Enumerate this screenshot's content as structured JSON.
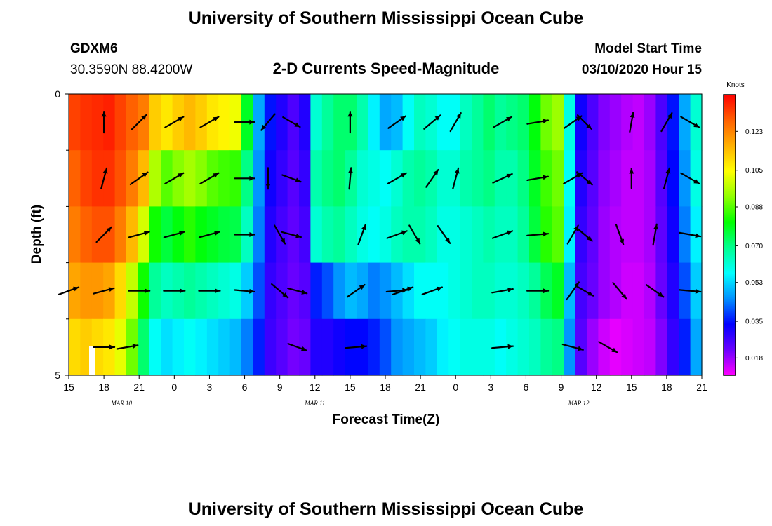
{
  "header": {
    "title_top": "University of Southern Mississippi Ocean Cube",
    "title_bottom": "University of Southern Mississippi Ocean Cube",
    "station_id": "GDXM6",
    "station_coords": "30.3590N 88.4200W",
    "model_start_label": "Model Start Time",
    "model_start_value": "03/10/2020 Hour 15"
  },
  "chart_data": {
    "type": "heatmap",
    "title": "2-D Currents Speed-Magnitude",
    "xlabel": "Forecast Time(Z)",
    "ylabel": "Depth (ft)",
    "units_label": "Knots",
    "x_range_hours": [
      0,
      54
    ],
    "ylim": [
      0,
      5
    ],
    "y_ticks": [
      "0",
      "5"
    ],
    "x_tick_labels": [
      "15",
      "18",
      "21",
      "0",
      "3",
      "6",
      "9",
      "12",
      "15",
      "18",
      "21",
      "0",
      "3",
      "6",
      "9",
      "12",
      "15",
      "18",
      "21"
    ],
    "date_labels": [
      {
        "text": "MAR 10",
        "hour": 4.5
      },
      {
        "text": "MAR 11",
        "hour": 21
      },
      {
        "text": "MAR 12",
        "hour": 43.5
      }
    ],
    "colorbar": {
      "min": 0.01,
      "max": 0.14,
      "tick_values": [
        0.018,
        0.035,
        0.053,
        0.07,
        0.088,
        0.105,
        0.123
      ],
      "tick_labels": [
        "0.018",
        "0.035",
        "0.053",
        "0.070",
        "0.088",
        "0.105",
        "0.123"
      ],
      "colors": [
        "#ff00ff",
        "#6a00ff",
        "#0000ff",
        "#0090ff",
        "#00ffff",
        "#00ff90",
        "#00ff00",
        "#90ff00",
        "#ffff00",
        "#ffb000",
        "#ff6000",
        "#ff0000"
      ]
    },
    "depth_levels": [
      0.5,
      1.5,
      2.5,
      3.5,
      4.5
    ],
    "time_hours": [
      0,
      1,
      2,
      3,
      4,
      5,
      6,
      7,
      8,
      9,
      10,
      11,
      12,
      13,
      14,
      15,
      16,
      17,
      18,
      19,
      20,
      21,
      22,
      23,
      24,
      25,
      26,
      27,
      28,
      29,
      30,
      31,
      32,
      33,
      34,
      35,
      36,
      37,
      38,
      39,
      40,
      41,
      42,
      43,
      44,
      45,
      46,
      47,
      48,
      49,
      50,
      51,
      52,
      53,
      54
    ],
    "speed": [
      [
        0.132,
        0.134,
        0.135,
        0.136,
        0.132,
        0.128,
        0.124,
        0.112,
        0.108,
        0.112,
        0.115,
        0.112,
        0.108,
        0.106,
        0.103,
        0.078,
        0.048,
        0.035,
        0.03,
        0.025,
        0.03,
        0.062,
        0.068,
        0.072,
        0.072,
        0.066,
        0.056,
        0.048,
        0.05,
        0.058,
        0.064,
        0.062,
        0.058,
        0.058,
        0.064,
        0.068,
        0.072,
        0.068,
        0.07,
        0.072,
        0.08,
        0.09,
        0.094,
        0.06,
        0.032,
        0.025,
        0.02,
        0.018,
        0.016,
        0.015,
        0.018,
        0.025,
        0.035,
        0.048,
        0.062
      ],
      [
        0.128,
        0.132,
        0.134,
        0.134,
        0.13,
        0.124,
        0.115,
        0.096,
        0.088,
        0.092,
        0.095,
        0.092,
        0.088,
        0.086,
        0.085,
        0.07,
        0.046,
        0.032,
        0.028,
        0.024,
        0.028,
        0.066,
        0.07,
        0.072,
        0.068,
        0.062,
        0.06,
        0.058,
        0.062,
        0.066,
        0.068,
        0.066,
        0.062,
        0.062,
        0.066,
        0.068,
        0.07,
        0.066,
        0.066,
        0.07,
        0.078,
        0.086,
        0.09,
        0.058,
        0.03,
        0.024,
        0.019,
        0.017,
        0.015,
        0.015,
        0.017,
        0.024,
        0.034,
        0.046,
        0.06
      ],
      [
        0.124,
        0.128,
        0.13,
        0.13,
        0.124,
        0.115,
        0.1,
        0.082,
        0.076,
        0.08,
        0.084,
        0.08,
        0.078,
        0.076,
        0.075,
        0.064,
        0.044,
        0.03,
        0.026,
        0.023,
        0.026,
        0.062,
        0.066,
        0.068,
        0.064,
        0.06,
        0.058,
        0.06,
        0.064,
        0.066,
        0.066,
        0.064,
        0.06,
        0.06,
        0.062,
        0.064,
        0.066,
        0.064,
        0.064,
        0.068,
        0.076,
        0.084,
        0.088,
        0.056,
        0.028,
        0.023,
        0.018,
        0.016,
        0.015,
        0.015,
        0.017,
        0.023,
        0.032,
        0.044,
        0.056
      ],
      [
        0.118,
        0.12,
        0.12,
        0.118,
        0.11,
        0.098,
        0.082,
        0.068,
        0.064,
        0.066,
        0.068,
        0.066,
        0.064,
        0.062,
        0.06,
        0.052,
        0.04,
        0.028,
        0.025,
        0.022,
        0.024,
        0.036,
        0.04,
        0.046,
        0.05,
        0.048,
        0.044,
        0.046,
        0.05,
        0.054,
        0.058,
        0.058,
        0.058,
        0.06,
        0.062,
        0.064,
        0.064,
        0.062,
        0.062,
        0.064,
        0.068,
        0.074,
        0.078,
        0.05,
        0.026,
        0.022,
        0.018,
        0.016,
        0.014,
        0.014,
        0.016,
        0.022,
        0.03,
        0.04,
        0.052
      ],
      [
        0.11,
        0.112,
        0.11,
        0.108,
        0.102,
        0.09,
        0.072,
        0.058,
        0.054,
        0.056,
        0.058,
        0.056,
        0.054,
        0.052,
        0.05,
        0.044,
        0.036,
        0.027,
        0.024,
        0.021,
        0.022,
        0.03,
        0.03,
        0.032,
        0.034,
        0.034,
        0.036,
        0.04,
        0.046,
        0.048,
        0.05,
        0.052,
        0.056,
        0.058,
        0.06,
        0.06,
        0.06,
        0.058,
        0.06,
        0.062,
        0.064,
        0.068,
        0.07,
        0.046,
        0.024,
        0.018,
        0.014,
        0.012,
        0.013,
        0.014,
        0.015,
        0.02,
        0.028,
        0.036,
        0.048
      ]
    ],
    "vectors": [
      [
        {
          "t": 3,
          "dir": 0,
          "len": 30
        },
        {
          "t": 6,
          "dir": 45,
          "len": 30
        },
        {
          "t": 9,
          "dir": 60,
          "len": 30
        },
        {
          "t": 12,
          "dir": 60,
          "len": 30
        },
        {
          "t": 15,
          "dir": 90,
          "len": 28
        },
        {
          "t": 17,
          "dir": 220,
          "len": 30
        },
        {
          "t": 19,
          "dir": 120,
          "len": 28
        },
        {
          "t": 24,
          "dir": 0,
          "len": 30
        },
        {
          "t": 28,
          "dir": 55,
          "len": 30
        },
        {
          "t": 31,
          "dir": 50,
          "len": 30
        },
        {
          "t": 33,
          "dir": 30,
          "len": 30
        },
        {
          "t": 37,
          "dir": 60,
          "len": 30
        },
        {
          "t": 40,
          "dir": 80,
          "len": 30
        },
        {
          "t": 43,
          "dir": 55,
          "len": 30
        },
        {
          "t": 44,
          "dir": 135,
          "len": 28
        },
        {
          "t": 48,
          "dir": 10,
          "len": 28
        },
        {
          "t": 51,
          "dir": 30,
          "len": 30
        },
        {
          "t": 53,
          "dir": 120,
          "len": 30
        }
      ],
      [
        {
          "t": 3,
          "dir": 15,
          "len": 30
        },
        {
          "t": 6,
          "dir": 55,
          "len": 30
        },
        {
          "t": 9,
          "dir": 60,
          "len": 30
        },
        {
          "t": 12,
          "dir": 60,
          "len": 30
        },
        {
          "t": 15,
          "dir": 90,
          "len": 28
        },
        {
          "t": 17,
          "dir": 180,
          "len": 30
        },
        {
          "t": 19,
          "dir": 110,
          "len": 28
        },
        {
          "t": 24,
          "dir": 5,
          "len": 30
        },
        {
          "t": 28,
          "dir": 60,
          "len": 30
        },
        {
          "t": 31,
          "dir": 35,
          "len": 30
        },
        {
          "t": 33,
          "dir": 15,
          "len": 30
        },
        {
          "t": 37,
          "dir": 65,
          "len": 30
        },
        {
          "t": 40,
          "dir": 80,
          "len": 30
        },
        {
          "t": 43,
          "dir": 60,
          "len": 30
        },
        {
          "t": 44,
          "dir": 130,
          "len": 28
        },
        {
          "t": 48,
          "dir": 0,
          "len": 28
        },
        {
          "t": 51,
          "dir": 15,
          "len": 30
        },
        {
          "t": 53,
          "dir": 120,
          "len": 30
        }
      ],
      [
        {
          "t": 3,
          "dir": 45,
          "len": 30
        },
        {
          "t": 6,
          "dir": 75,
          "len": 30
        },
        {
          "t": 9,
          "dir": 75,
          "len": 30
        },
        {
          "t": 12,
          "dir": 75,
          "len": 30
        },
        {
          "t": 15,
          "dir": 90,
          "len": 28
        },
        {
          "t": 18,
          "dir": 150,
          "len": 30
        },
        {
          "t": 19,
          "dir": 105,
          "len": 28
        },
        {
          "t": 25,
          "dir": 20,
          "len": 30
        },
        {
          "t": 28,
          "dir": 70,
          "len": 30
        },
        {
          "t": 29.5,
          "dir": 150,
          "len": 30
        },
        {
          "t": 32,
          "dir": 145,
          "len": 30
        },
        {
          "t": 37,
          "dir": 70,
          "len": 30
        },
        {
          "t": 40,
          "dir": 85,
          "len": 30
        },
        {
          "t": 43,
          "dir": 30,
          "len": 30
        },
        {
          "t": 44,
          "dir": 130,
          "len": 28
        },
        {
          "t": 47,
          "dir": 160,
          "len": 30
        },
        {
          "t": 50,
          "dir": 10,
          "len": 30
        },
        {
          "t": 53,
          "dir": 100,
          "len": 30
        }
      ],
      [
        {
          "t": 0,
          "dir": 70,
          "len": 30
        },
        {
          "t": 3,
          "dir": 75,
          "len": 30
        },
        {
          "t": 6,
          "dir": 90,
          "len": 30
        },
        {
          "t": 9,
          "dir": 90,
          "len": 30
        },
        {
          "t": 12,
          "dir": 90,
          "len": 30
        },
        {
          "t": 15,
          "dir": 95,
          "len": 28
        },
        {
          "t": 18,
          "dir": 130,
          "len": 30
        },
        {
          "t": 19.5,
          "dir": 105,
          "len": 28
        },
        {
          "t": 24.5,
          "dir": 55,
          "len": 30
        },
        {
          "t": 28,
          "dir": 85,
          "len": 30
        },
        {
          "t": 28.5,
          "dir": 70,
          "len": 30
        },
        {
          "t": 31,
          "dir": 70,
          "len": 30
        },
        {
          "t": 37,
          "dir": 80,
          "len": 30
        },
        {
          "t": 40,
          "dir": 90,
          "len": 30
        },
        {
          "t": 43,
          "dir": 35,
          "len": 30
        },
        {
          "t": 44,
          "dir": 120,
          "len": 28
        },
        {
          "t": 47,
          "dir": 140,
          "len": 30
        },
        {
          "t": 50,
          "dir": 125,
          "len": 30
        },
        {
          "t": 53,
          "dir": 95,
          "len": 30
        }
      ],
      [
        {
          "t": 3,
          "dir": 90,
          "len": 30
        },
        {
          "t": 5,
          "dir": 80,
          "len": 30
        },
        {
          "t": 19.5,
          "dir": 110,
          "len": 28
        },
        {
          "t": 24.5,
          "dir": 85,
          "len": 30
        },
        {
          "t": 37,
          "dir": 85,
          "len": 30
        },
        {
          "t": 43,
          "dir": 105,
          "len": 30
        },
        {
          "t": 46,
          "dir": 120,
          "len": 30
        }
      ]
    ]
  }
}
